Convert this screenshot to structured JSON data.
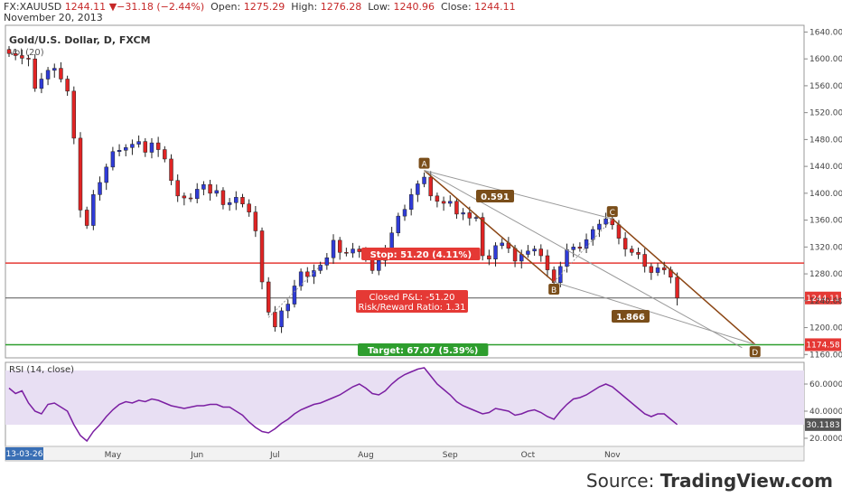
{
  "header": {
    "symbol": "FX:XAUUSD",
    "last": "1244.11",
    "change_arrow": "▼",
    "change": "−31.18 (−2.44%)",
    "open_label": "Open:",
    "open": "1275.29",
    "high_label": "High:",
    "high": "1276.28",
    "low_label": "Low:",
    "low": "1240.96",
    "close_label": "Close:",
    "close": "1244.11",
    "date": "November 20, 2013"
  },
  "chart_title": "Gold/U.S. Dollar, D, FXCM",
  "volume_label": "Vol (20)",
  "price_panel": {
    "ticks": [
      "1640.00",
      "1600.00",
      "1560.00",
      "1520.00",
      "1480.00",
      "1440.00",
      "1400.00",
      "1360.00",
      "1320.00",
      "1280.00",
      "1240.00",
      "1200.00",
      "1160.00"
    ],
    "tick_values": [
      1640,
      1600,
      1560,
      1520,
      1480,
      1440,
      1400,
      1360,
      1320,
      1280,
      1240,
      1200,
      1160
    ],
    "ylim": [
      1155,
      1650
    ],
    "last_price_badge": "1244.11",
    "target_badge": "1174.58",
    "stop_level": 1296,
    "target_level": 1174.58,
    "last_level": 1244.11
  },
  "annotations": {
    "stop": "Stop: 51.20 (4.11%)",
    "pnl": "Closed P&L: -51.20",
    "rr": "Risk/Reward Ratio: 1.31",
    "target": "Target: 67.07 (5.39%)",
    "ret1": "0.591",
    "ret2": "1.866",
    "point_a": "A",
    "point_b": "B",
    "point_c": "C",
    "point_d": "D"
  },
  "pattern_points": [
    {
      "label": "A",
      "day": 64,
      "price": 1434
    },
    {
      "label": "B",
      "day": 84,
      "price": 1268
    },
    {
      "label": "C",
      "day": 93,
      "price": 1362
    },
    {
      "label": "D",
      "day": 115,
      "price": 1175
    }
  ],
  "x_axis": {
    "start_label": "13-03-26",
    "months": [
      {
        "label": "May",
        "day": 16
      },
      {
        "label": "Jun",
        "day": 29
      },
      {
        "label": "Jul",
        "day": 41
      },
      {
        "label": "Aug",
        "day": 55
      },
      {
        "label": "Sep",
        "day": 68
      },
      {
        "label": "Oct",
        "day": 80
      },
      {
        "label": "Nov",
        "day": 93
      }
    ]
  },
  "rsi_panel": {
    "title": "RSI (14, close)",
    "ticks": [
      "60.0000",
      "40.0000",
      "20.0000"
    ],
    "tick_values": [
      60,
      40,
      20
    ],
    "ylim": [
      14,
      76
    ],
    "band": [
      30,
      70
    ],
    "last_badge": "30.1183"
  },
  "colors": {
    "up": "#2f3bd8",
    "down": "#e02424",
    "stop": "#e53935",
    "target": "#2e9e2e",
    "pattern": "#8b4513",
    "rsi": "#7b1fa2",
    "band": "#e8dff3",
    "badge_dark": "#7a4e1a"
  },
  "chart_data": {
    "type": "candlestick",
    "title": "Gold/U.S. Dollar, D, FXCM",
    "series": [
      {
        "name": "XAUUSD",
        "close": [
          1608,
          1605,
          1601,
          1600,
          1556,
          1570,
          1583,
          1586,
          1570,
          1552,
          1482,
          1375,
          1352,
          1398,
          1416,
          1439,
          1462,
          1464,
          1468,
          1473,
          1477,
          1461,
          1475,
          1465,
          1451,
          1419,
          1396,
          1393,
          1392,
          1406,
          1413,
          1400,
          1404,
          1383,
          1386,
          1394,
          1384,
          1372,
          1344,
          1268,
          1223,
          1201,
          1225,
          1235,
          1262,
          1283,
          1276,
          1285,
          1293,
          1304,
          1330,
          1312,
          1311,
          1317,
          1313,
          1309,
          1285,
          1300,
          1316,
          1341,
          1366,
          1376,
          1398,
          1414,
          1424,
          1396,
          1388,
          1385,
          1388,
          1369,
          1371,
          1363,
          1364,
          1307,
          1302,
          1322,
          1326,
          1318,
          1299,
          1309,
          1314,
          1317,
          1307,
          1286,
          1267,
          1291,
          1316,
          1320,
          1318,
          1331,
          1346,
          1354,
          1362,
          1353,
          1333,
          1317,
          1312,
          1309,
          1291,
          1282,
          1289,
          1286,
          1275,
          1244
        ]
      },
      {
        "name": "RSI (14, close)",
        "values": [
          57,
          53,
          55,
          46,
          40,
          38,
          45,
          46,
          43,
          40,
          30,
          22,
          18,
          25,
          30,
          36,
          41,
          45,
          47,
          46,
          48,
          47,
          49,
          48,
          46,
          44,
          43,
          42,
          43,
          44,
          44,
          45,
          45,
          43,
          43,
          40,
          37,
          32,
          28,
          25,
          24,
          27,
          31,
          34,
          38,
          41,
          43,
          45,
          46,
          48,
          50,
          52,
          55,
          58,
          60,
          57,
          53,
          52,
          55,
          60,
          64,
          67,
          69,
          71,
          72,
          66,
          60,
          56,
          52,
          47,
          44,
          42,
          40,
          38,
          39,
          42,
          41,
          40,
          37,
          38,
          40,
          41,
          39,
          36,
          34,
          40,
          45,
          49,
          50,
          52,
          55,
          58,
          60,
          58,
          54,
          50,
          46,
          42,
          38,
          36,
          38,
          38,
          34,
          30.1
        ]
      }
    ],
    "ylim": [
      1155,
      1650
    ],
    "legend": "none"
  }
}
